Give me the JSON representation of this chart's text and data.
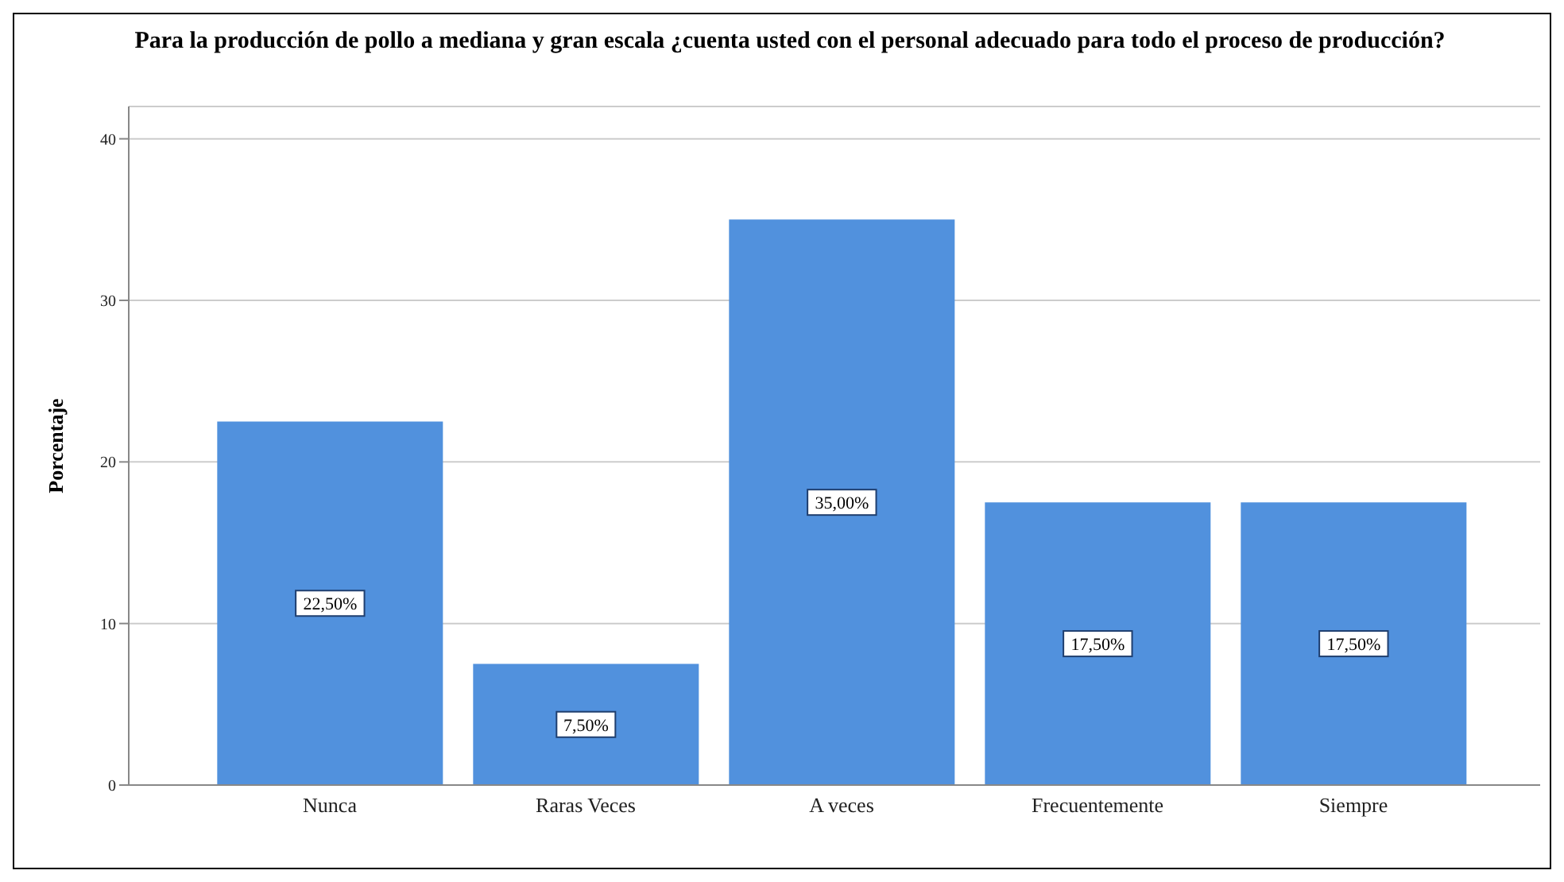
{
  "chart_data": {
    "type": "bar",
    "title": "Para la producción de pollo a mediana y gran escala ¿cuenta usted con el personal adecuado para todo el proceso de producción?",
    "ylabel": "Porcentaje",
    "categories": [
      "Nunca",
      "Raras Veces",
      "A veces",
      "Frecuentemente",
      "Siempre"
    ],
    "values": [
      22.5,
      7.5,
      35,
      17.5,
      17.5
    ],
    "value_labels": [
      "22,50%",
      "7,50%",
      "35,00%",
      "17,50%",
      "17,50%"
    ],
    "color": "#5191dd",
    "ylim": [
      0,
      42
    ],
    "yticks": [
      0,
      10,
      20,
      30,
      40
    ],
    "grid": "y"
  }
}
